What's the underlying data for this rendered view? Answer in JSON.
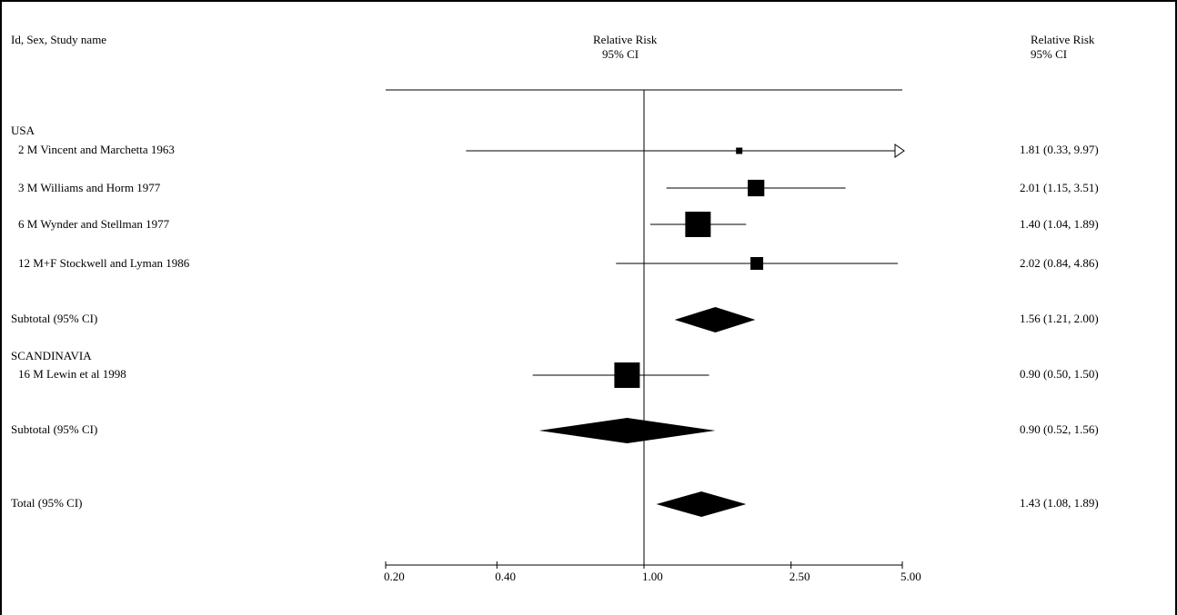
{
  "header": {
    "left": "Id, Sex, Study name",
    "center_line1": "Relative Risk",
    "center_line2": "95% CI",
    "right_line1": "Relative Risk",
    "right_line2": "95% CI"
  },
  "chart_data": {
    "type": "forest",
    "scale": "log",
    "xlim": [
      0.2,
      5.0
    ],
    "reference_value": 1.0,
    "x_ticks": [
      "0.20",
      "0.40",
      "1.00",
      "2.50",
      "5.00"
    ],
    "x_tick_values": [
      0.2,
      0.4,
      1.0,
      2.5,
      5.0
    ],
    "groups": [
      {
        "name": "USA",
        "studies": [
          {
            "label": "2 M Vincent and Marchetta 1963",
            "rr": 1.81,
            "lo": 0.33,
            "hi": 9.97,
            "ci_text": "1.81 (0.33, 9.97)",
            "arrow_right": true,
            "weight": 0.25
          },
          {
            "label": "3 M Williams and Horm 1977",
            "rr": 2.01,
            "lo": 1.15,
            "hi": 3.51,
            "ci_text": "2.01 (1.15, 3.51)",
            "arrow_right": false,
            "weight": 0.65
          },
          {
            "label": "6 M Wynder and Stellman 1977",
            "rr": 1.4,
            "lo": 1.04,
            "hi": 1.89,
            "ci_text": "1.40 (1.04, 1.89)",
            "arrow_right": false,
            "weight": 1.0
          },
          {
            "label": "12 M+F Stockwell and Lyman 1986",
            "rr": 2.02,
            "lo": 0.84,
            "hi": 4.86,
            "ci_text": "2.02 (0.84, 4.86)",
            "arrow_right": false,
            "weight": 0.5
          }
        ],
        "subtotal": {
          "label": "Subtotal (95% CI)",
          "rr": 1.56,
          "lo": 1.21,
          "hi": 2.0,
          "ci_text": "1.56 (1.21, 2.00)"
        }
      },
      {
        "name": "SCANDINAVIA",
        "studies": [
          {
            "label": "16 M Lewin et al 1998",
            "rr": 0.9,
            "lo": 0.5,
            "hi": 1.5,
            "ci_text": "0.90 (0.50, 1.50)",
            "arrow_right": false,
            "weight": 1.0
          }
        ],
        "subtotal": {
          "label": "Subtotal (95% CI)",
          "rr": 0.9,
          "lo": 0.52,
          "hi": 1.56,
          "ci_text": "0.90 (0.52, 1.56)"
        }
      }
    ],
    "total": {
      "label": "Total (95% CI)",
      "rr": 1.43,
      "lo": 1.08,
      "hi": 1.89,
      "ci_text": "1.43 (1.08, 1.89)"
    }
  }
}
